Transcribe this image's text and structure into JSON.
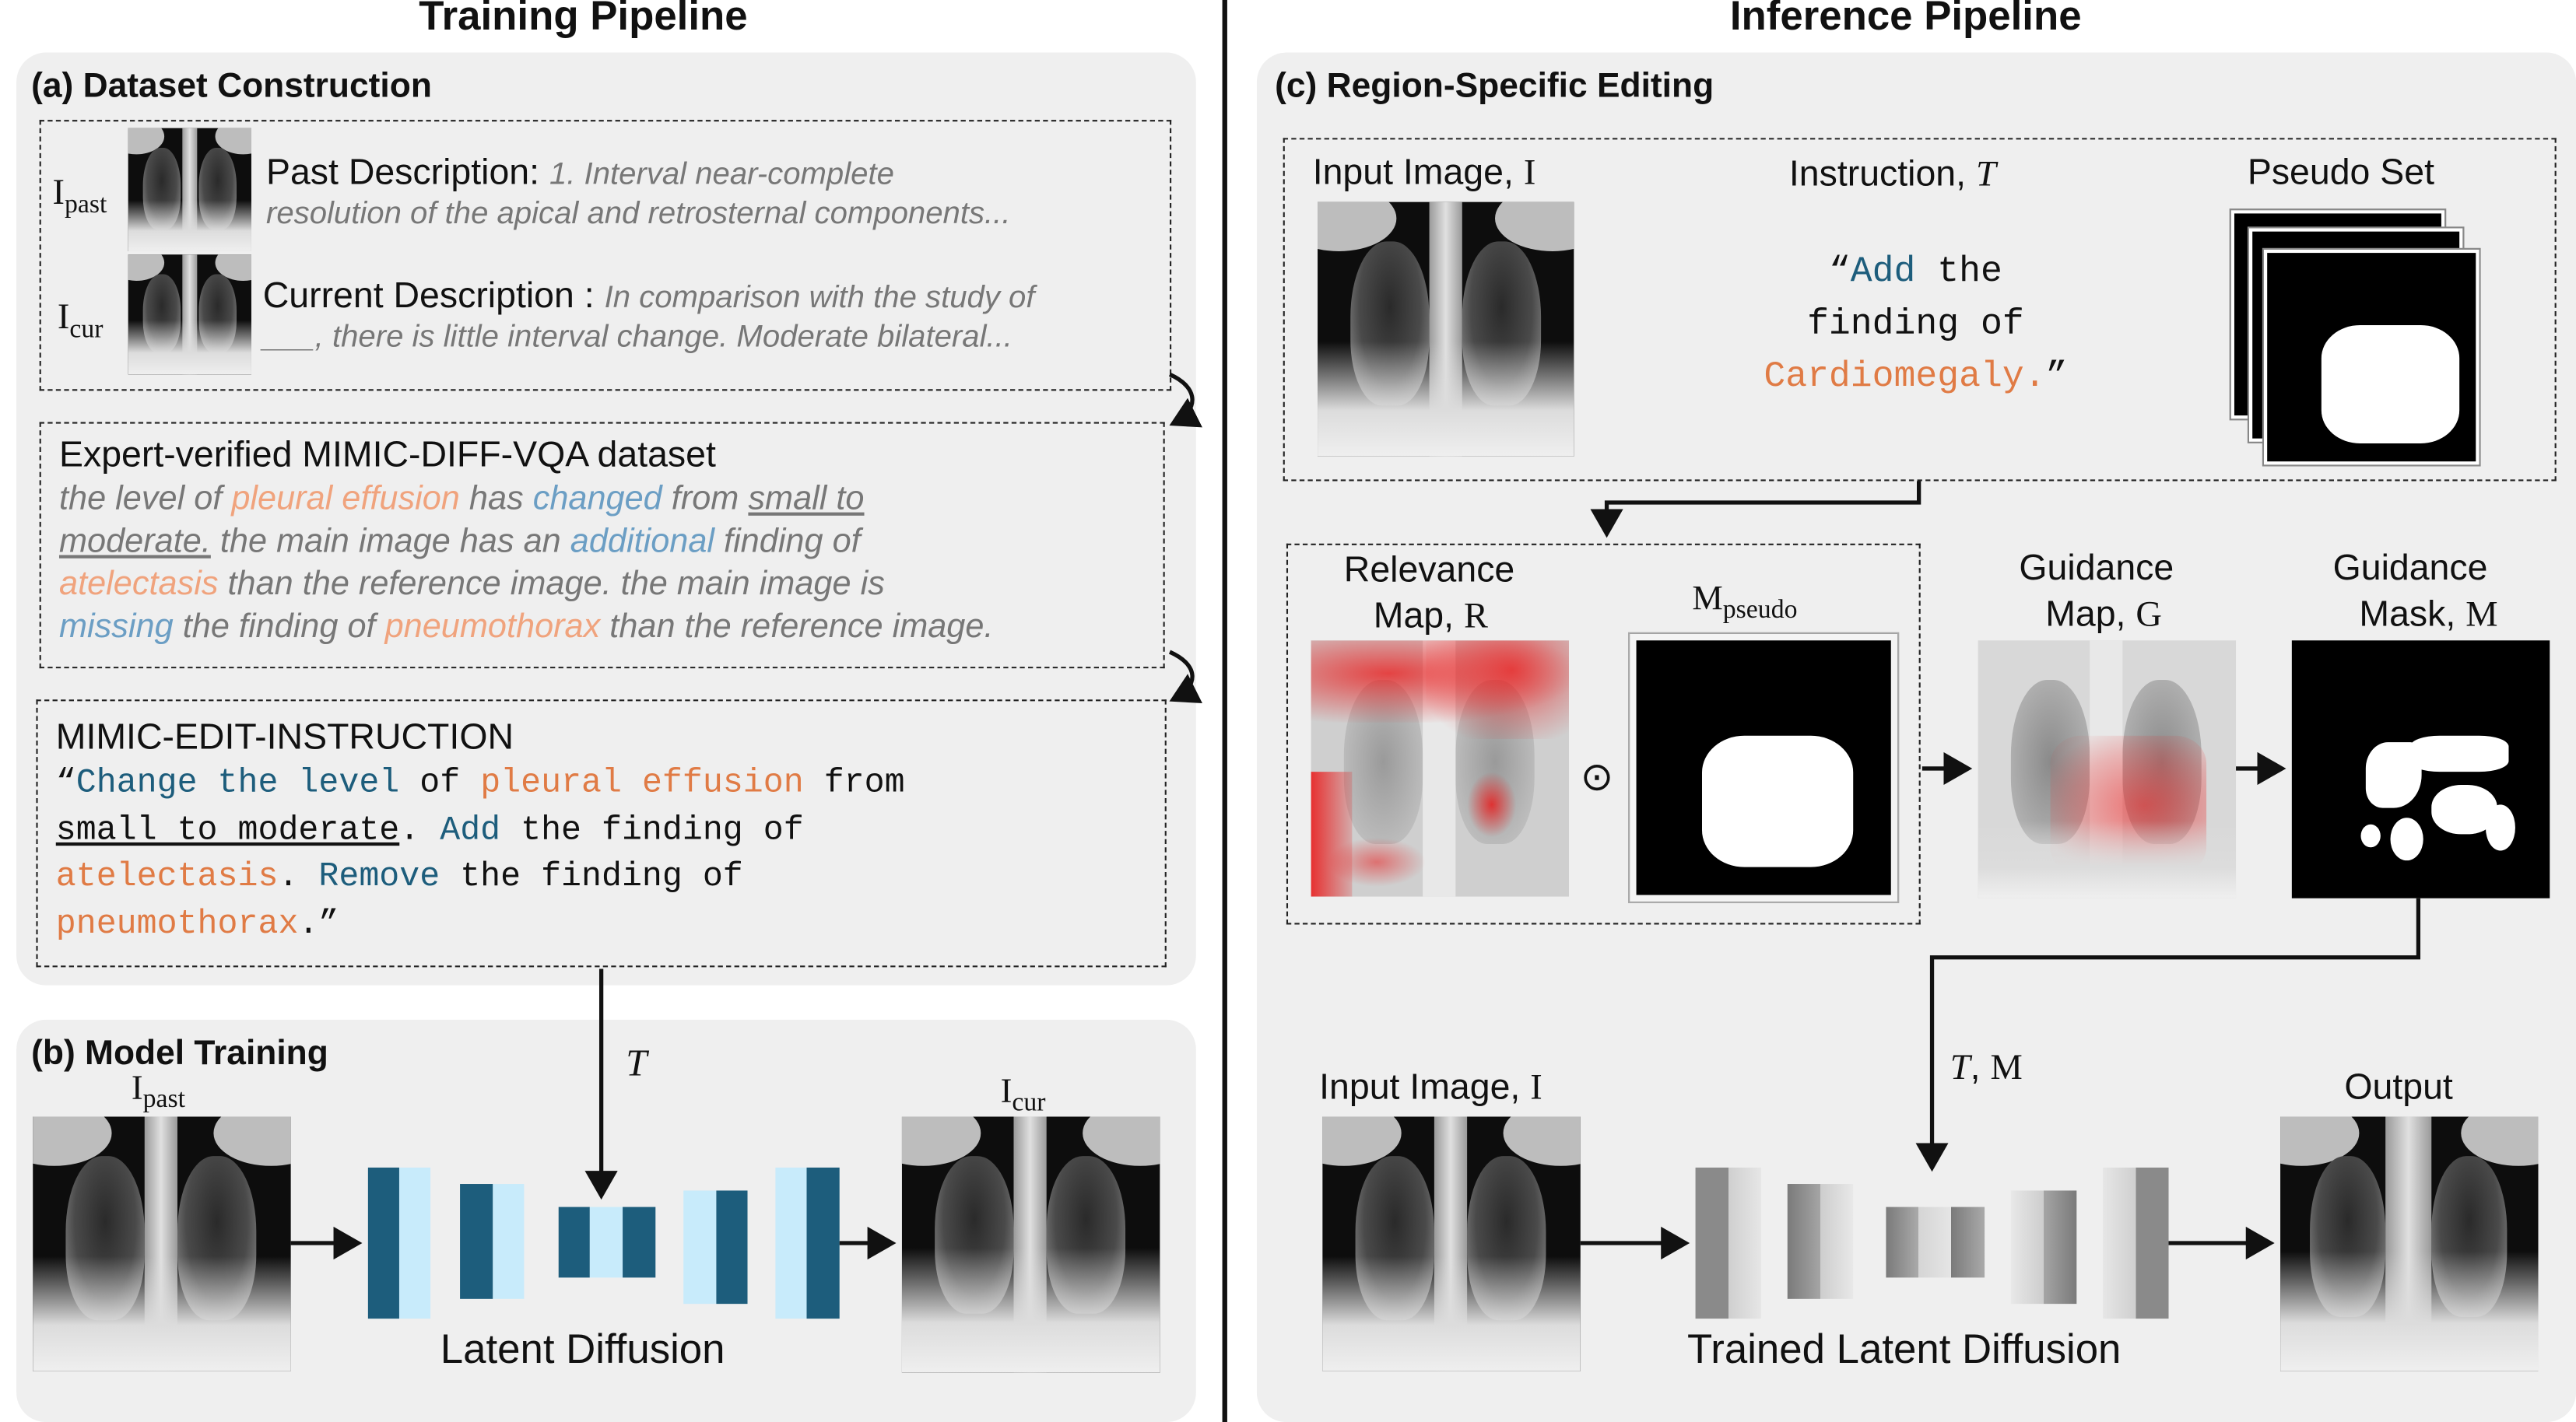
{
  "headers": {
    "training": "Training Pipeline",
    "inference": "Inference Pipeline"
  },
  "panel_a": {
    "title": "(a) Dataset Construction",
    "i_past": "I",
    "i_past_sub": "past",
    "i_cur": "I",
    "i_cur_sub": "cur",
    "past_label": "Past Description:",
    "past_text_1": "1. Interval near-complete",
    "past_text_2": "resolution of the apical and retrosternal components...",
    "cur_label": "Current Description :",
    "cur_text_1": "In comparison with the study of",
    "cur_text_2_blank": "___",
    "cur_text_2": ", there is little interval change. Moderate bilateral...",
    "expert_title": "Expert-verified MIMIC-DIFF-VQA dataset",
    "expert_lines": [
      [
        "the level of ",
        "pleural effusion",
        " has ",
        "changed",
        " from ",
        "small to"
      ],
      [
        "moderate.",
        " the main image has an ",
        "additional",
        " finding of"
      ],
      [
        "atelectasis",
        " than the reference image. the main image is"
      ],
      [
        "missing",
        " the finding of ",
        "pneumothorax",
        " than the reference image."
      ]
    ],
    "instr_title": "MIMIC-EDIT-INSTRUCTION",
    "instr_lines": [
      [
        "“",
        "Change the level",
        " of ",
        "pleural effusion",
        " from"
      ],
      [
        "small to moderate",
        ". ",
        "Add",
        " the finding of"
      ],
      [
        "atelectasis",
        ". ",
        "Remove",
        " the finding of"
      ],
      [
        "pneumothorax",
        ".”"
      ]
    ]
  },
  "panel_b": {
    "title": "(b) Model Training",
    "i_past": "I",
    "i_past_sub": "past",
    "i_cur": "I",
    "i_cur_sub": "cur",
    "t_label": "T",
    "model_label": "Latent Diffusion"
  },
  "panel_c": {
    "title": "(c) Region-Specific Editing",
    "input_label": "Input Image,",
    "input_var": "I",
    "instruction_label": "Instruction,",
    "instruction_var": "T",
    "instruction_lines": [
      [
        "“",
        "Add",
        " the"
      ],
      [
        "finding of"
      ],
      [
        "Cardiomegaly.",
        "”"
      ]
    ],
    "pseudo_label": "Pseudo Set",
    "relevance_label_1": "Relevance",
    "relevance_label_2": "Map,",
    "relevance_var": "R",
    "odot": "⊙",
    "mpseudo": "M",
    "mpseudo_sub": "pseudo",
    "guidance_map_1": "Guidance",
    "guidance_map_2": "Map,",
    "guidance_map_var": "G",
    "guidance_mask_1": "Guidance",
    "guidance_mask_2": "Mask,",
    "guidance_mask_var": "M",
    "tm_label_t": "T",
    "tm_label_sep": ", ",
    "tm_label_m": "M",
    "input2_label": "Input Image,",
    "input2_var": "I",
    "output_label": "Output",
    "model_label": "Trained Latent Diffusion"
  },
  "colors": {
    "dark_blue": "#1d5d7c",
    "light_blue": "#c8ebfb",
    "orange": "#e07b45",
    "panel_bg": "#efefef"
  }
}
